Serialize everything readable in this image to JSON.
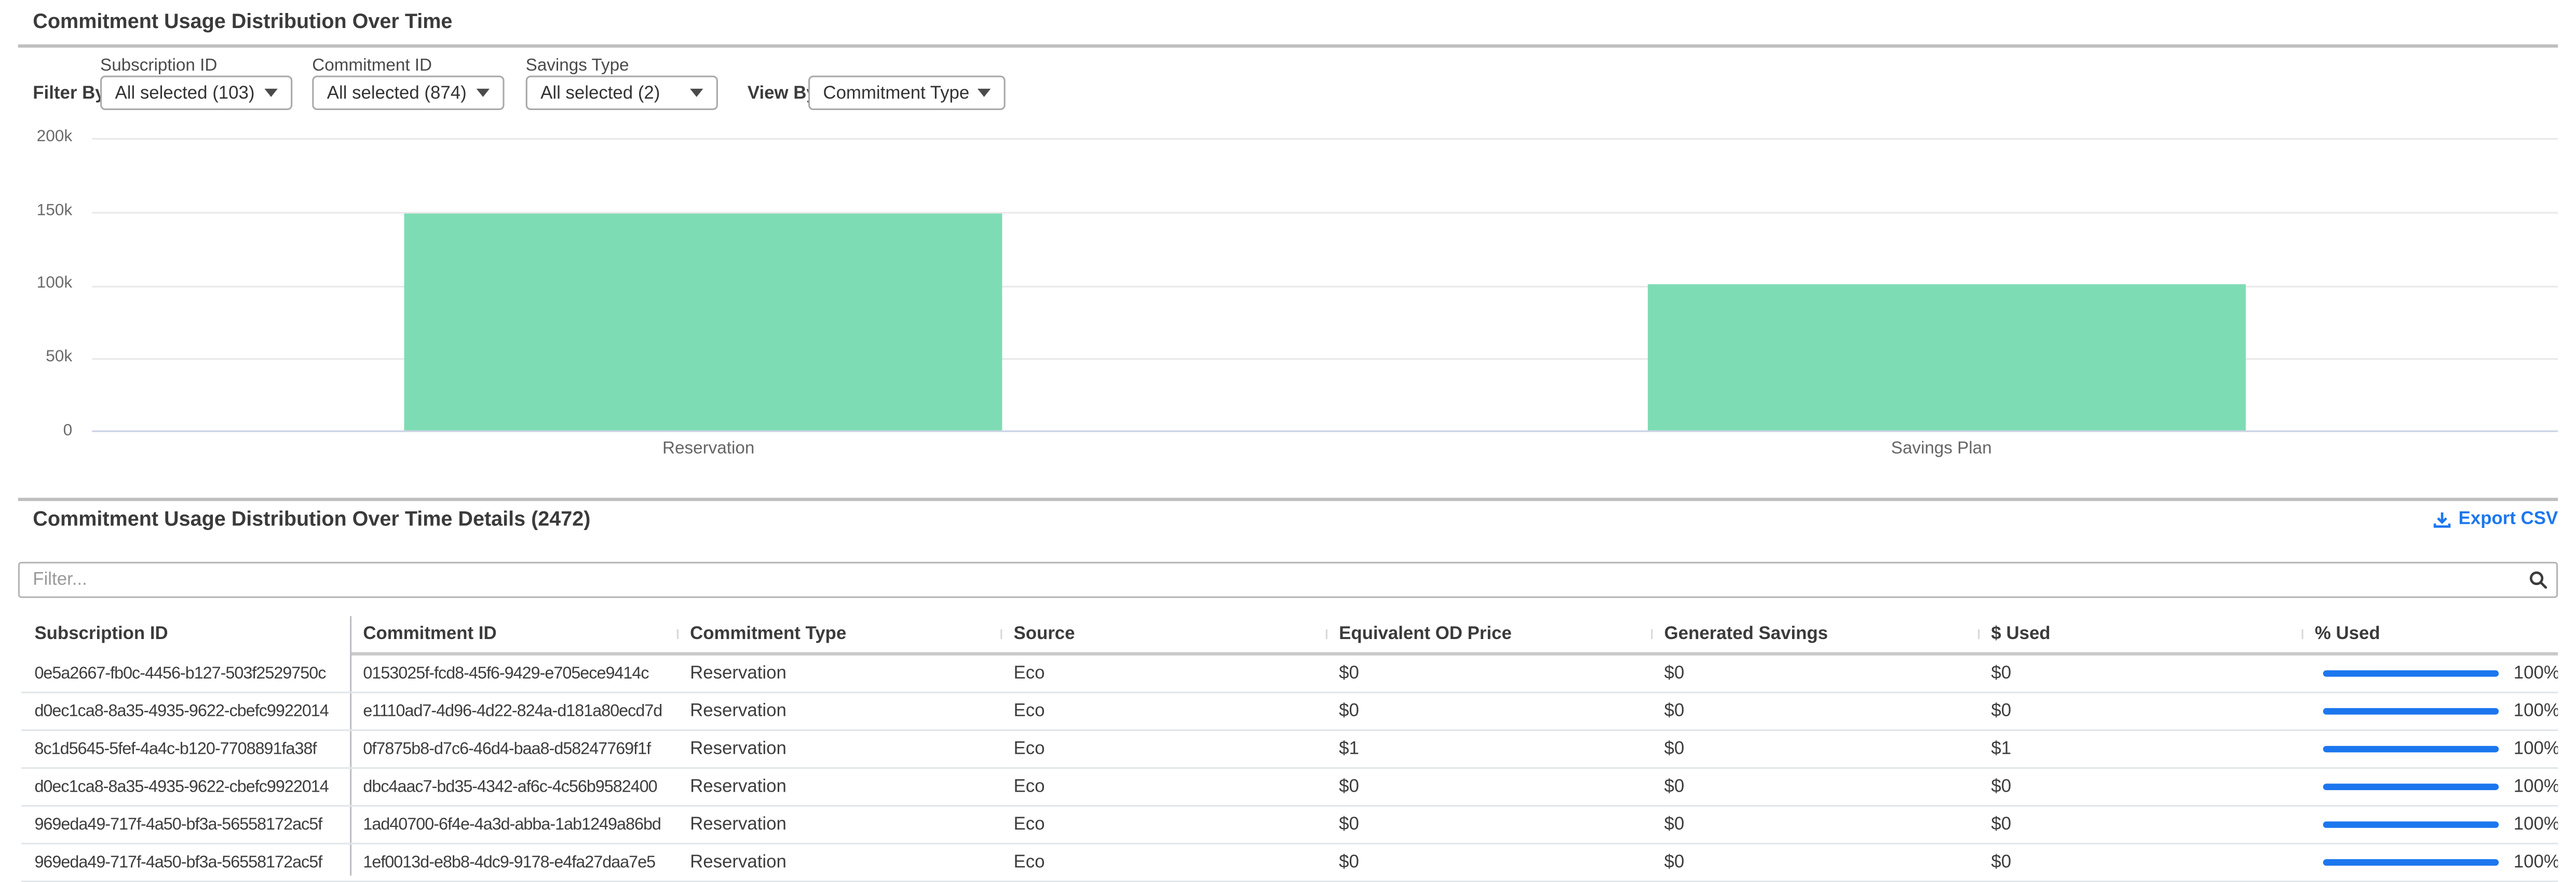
{
  "page": {
    "title": "Commitment Usage Distribution Over Time"
  },
  "filters": {
    "filter_by_label": "Filter By:",
    "view_by_label": "View By:",
    "dropdowns": [
      {
        "label": "Subscription ID",
        "value": "All selected (103)"
      },
      {
        "label": "Commitment ID",
        "value": "All selected (874)"
      },
      {
        "label": "Savings Type",
        "value": "All selected (2)"
      }
    ],
    "view_by": {
      "value": "Commitment Type"
    }
  },
  "chart_data": {
    "type": "bar",
    "title": "Commitment Usage Distribution Over Time",
    "categories": [
      "Reservation",
      "Savings Plan"
    ],
    "values": [
      148000,
      99000
    ],
    "xlabel": "",
    "ylabel": "",
    "ylim": [
      0,
      200000
    ],
    "yticks": [
      "200k",
      "150k",
      "100k",
      "50k",
      "0"
    ],
    "grid": true,
    "legend": "none",
    "bar_color": "#7edcb4"
  },
  "details": {
    "title": "Commitment Usage Distribution Over Time Details (2472)",
    "export_label": "Export CSV",
    "filter_placeholder": "Filter...",
    "columns": [
      "Subscription ID",
      "Commitment ID",
      "Commitment Type",
      "Source",
      "Equivalent OD Price",
      "Generated Savings",
      "$ Used",
      "% Used"
    ],
    "rows": [
      {
        "subscription_id": "0e5a2667-fb0c-4456-b127-503f2529750c",
        "commitment_id": "0153025f-fcd8-45f6-9429-e705ece9414c",
        "commitment_type": "Reservation",
        "source": "Eco",
        "equivalent_od_price": "$0",
        "generated_savings": "$0",
        "used": "$0",
        "pct_used": "100%",
        "pct_value": 100
      },
      {
        "subscription_id": "d0ec1ca8-8a35-4935-9622-cbefc9922014",
        "commitment_id": "e1110ad7-4d96-4d22-824a-d181a80ecd7d",
        "commitment_type": "Reservation",
        "source": "Eco",
        "equivalent_od_price": "$0",
        "generated_savings": "$0",
        "used": "$0",
        "pct_used": "100%",
        "pct_value": 100
      },
      {
        "subscription_id": "8c1d5645-5fef-4a4c-b120-7708891fa38f",
        "commitment_id": "0f7875b8-d7c6-46d4-baa8-d58247769f1f",
        "commitment_type": "Reservation",
        "source": "Eco",
        "equivalent_od_price": "$1",
        "generated_savings": "$0",
        "used": "$1",
        "pct_used": "100%",
        "pct_value": 100
      },
      {
        "subscription_id": "d0ec1ca8-8a35-4935-9622-cbefc9922014",
        "commitment_id": "dbc4aac7-bd35-4342-af6c-4c56b9582400",
        "commitment_type": "Reservation",
        "source": "Eco",
        "equivalent_od_price": "$0",
        "generated_savings": "$0",
        "used": "$0",
        "pct_used": "100%",
        "pct_value": 100
      },
      {
        "subscription_id": "969eda49-717f-4a50-bf3a-56558172ac5f",
        "commitment_id": "1ad40700-6f4e-4a3d-abba-1ab1249a86bd",
        "commitment_type": "Reservation",
        "source": "Eco",
        "equivalent_od_price": "$0",
        "generated_savings": "$0",
        "used": "$0",
        "pct_used": "100%",
        "pct_value": 100
      },
      {
        "subscription_id": "969eda49-717f-4a50-bf3a-56558172ac5f",
        "commitment_id": "1ef0013d-e8b8-4dc9-9178-e4fa27daa7e5",
        "commitment_type": "Reservation",
        "source": "Eco",
        "equivalent_od_price": "$0",
        "generated_savings": "$0",
        "used": "$0",
        "pct_used": "100%",
        "pct_value": 100
      }
    ]
  },
  "colors": {
    "accent_blue": "#1c77ee",
    "bar_green": "#7edcb4",
    "divider_gray": "#bfbfbf"
  }
}
